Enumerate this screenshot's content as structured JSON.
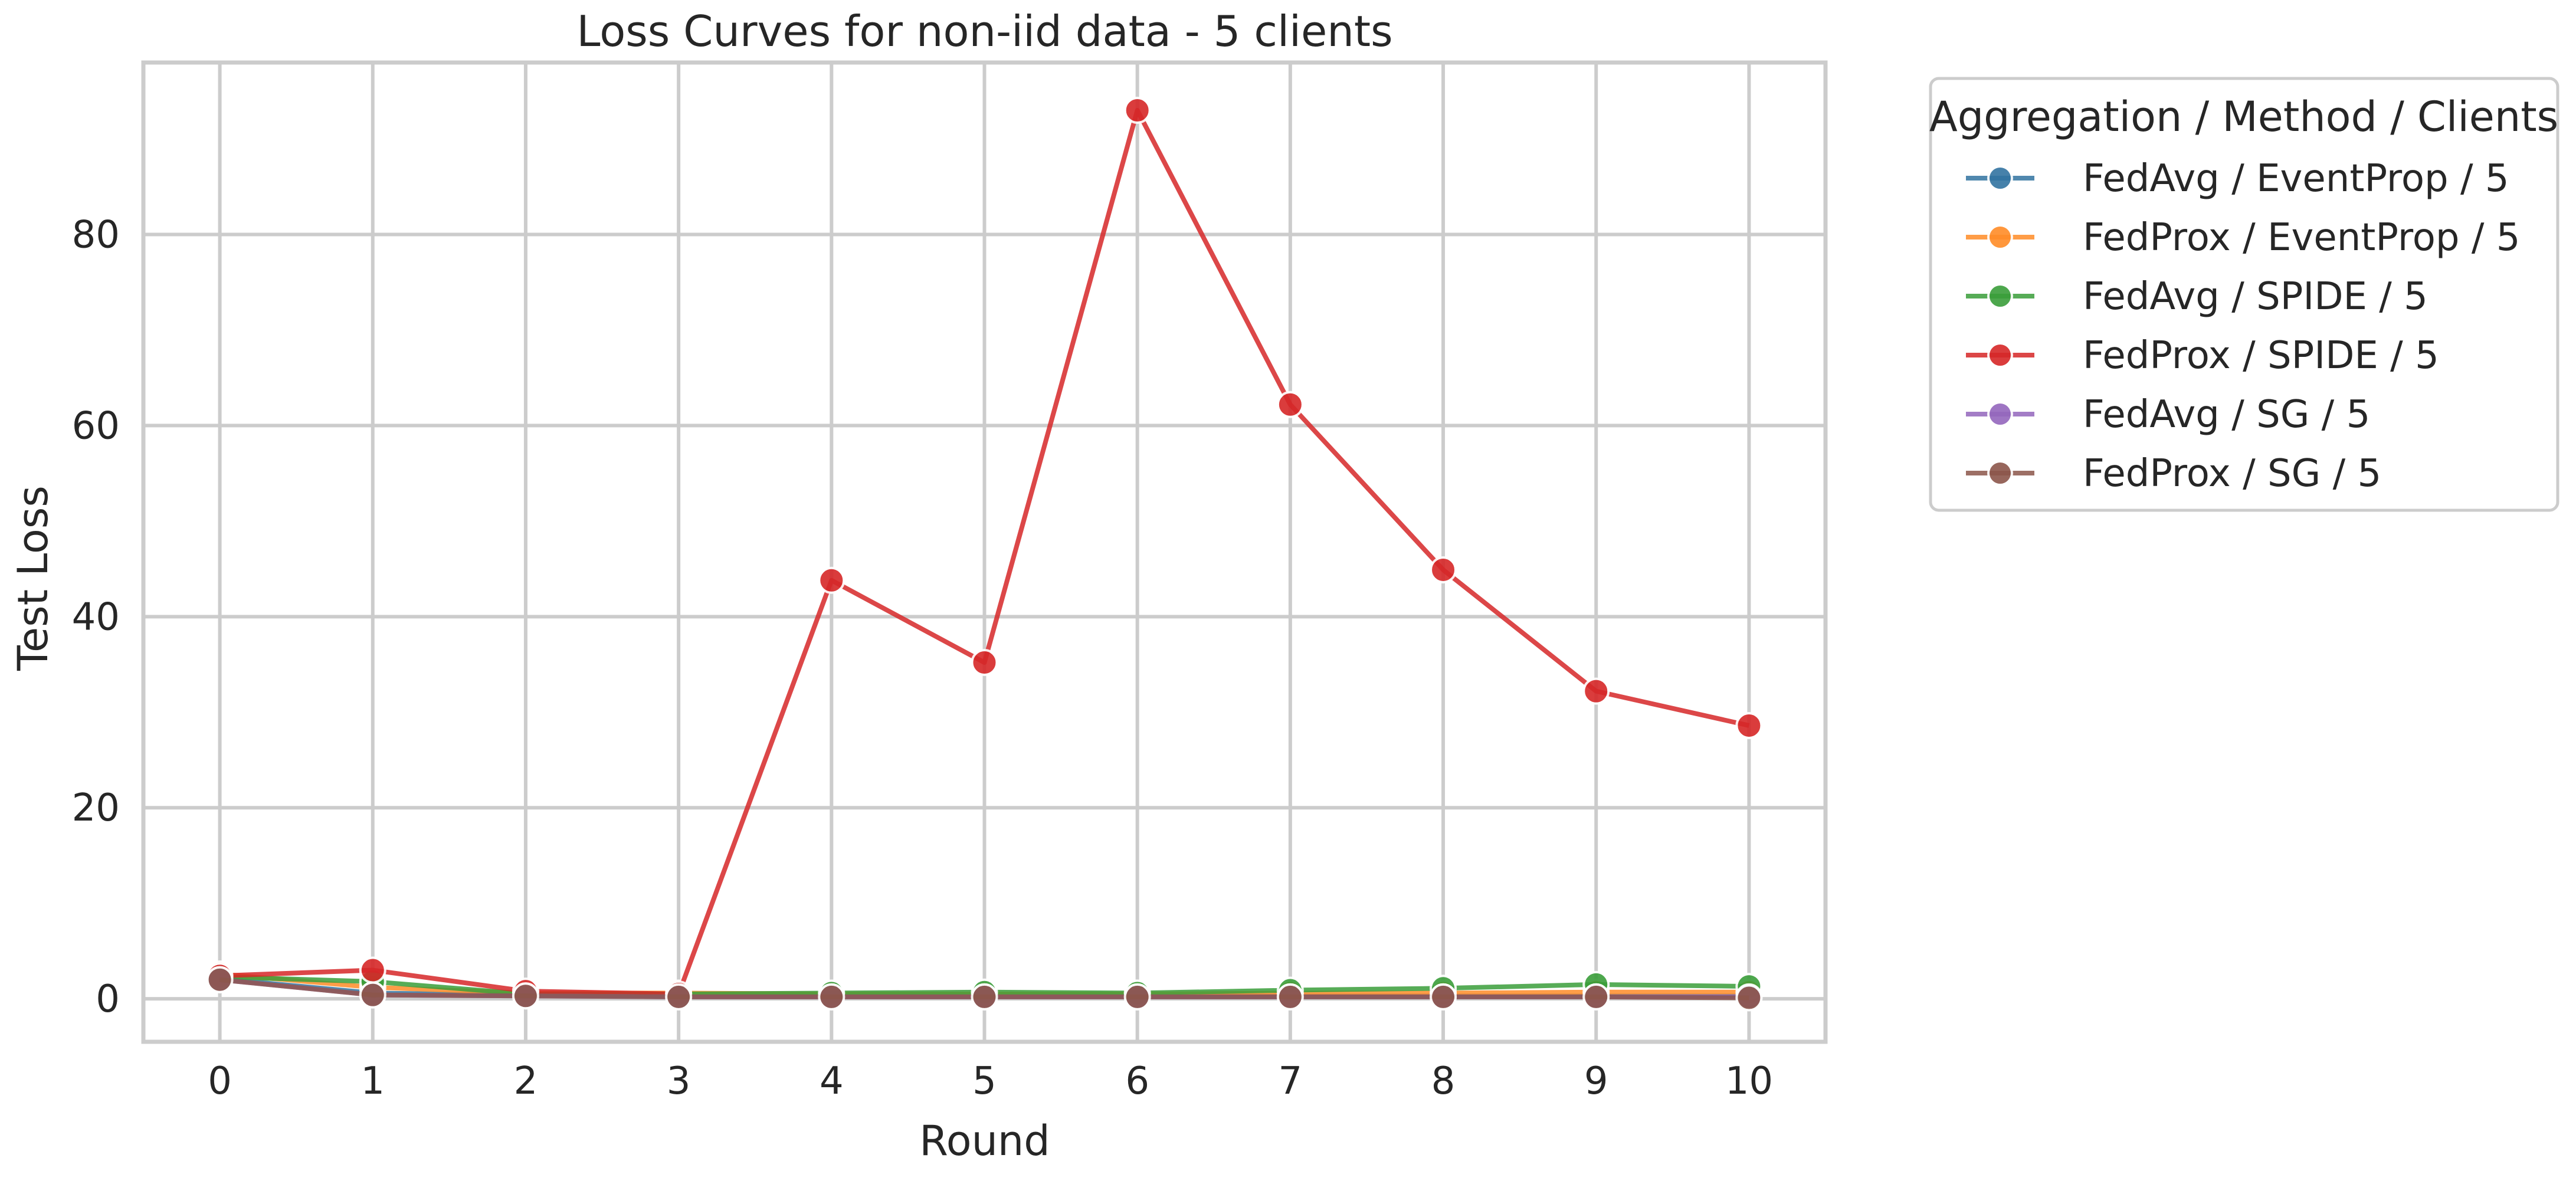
{
  "chart_data": {
    "type": "line",
    "title": "Loss Curves for non-iid data - 5 clients",
    "xlabel": "Round",
    "ylabel": "Test Loss",
    "x": [
      0,
      1,
      2,
      3,
      4,
      5,
      6,
      7,
      8,
      9,
      10
    ],
    "xticks": [
      "0",
      "1",
      "2",
      "3",
      "4",
      "5",
      "6",
      "7",
      "8",
      "9",
      "10"
    ],
    "yticks": [
      0,
      20,
      40,
      60,
      80
    ],
    "xlim": [
      -0.5,
      10.5
    ],
    "ylim": [
      -4.5,
      98
    ],
    "grid": true,
    "legend": {
      "title": "Aggregation / Method / Clients",
      "placement": "outside-top-right"
    },
    "series": [
      {
        "name": "FedAvg / EventProp / 5",
        "color": "#3274a1",
        "values": [
          2.1,
          0.6,
          0.4,
          0.3,
          0.3,
          0.3,
          0.3,
          0.3,
          0.3,
          0.3,
          0.3
        ]
      },
      {
        "name": "FedProx / EventProp / 5",
        "color": "#ff8c28",
        "values": [
          2.6,
          1.2,
          0.6,
          0.6,
          0.5,
          0.5,
          0.5,
          0.6,
          0.6,
          0.7,
          0.7
        ]
      },
      {
        "name": "FedAvg / SPIDE / 5",
        "color": "#3a9e3a",
        "values": [
          2.3,
          1.8,
          0.5,
          0.5,
          0.6,
          0.7,
          0.6,
          0.9,
          1.1,
          1.5,
          1.3
        ]
      },
      {
        "name": "FedProx / SPIDE / 5",
        "color": "#d62728",
        "values": [
          2.4,
          3.0,
          0.8,
          0.5,
          43.8,
          35.2,
          93.0,
          62.2,
          44.9,
          32.2,
          28.6
        ]
      },
      {
        "name": "FedAvg / SG / 5",
        "color": "#9467bd",
        "values": [
          2.0,
          0.4,
          0.3,
          0.2,
          0.2,
          0.2,
          0.2,
          0.2,
          0.2,
          0.2,
          0.2
        ]
      },
      {
        "name": "FedProx / SG / 5",
        "color": "#8c564b",
        "values": [
          2.0,
          0.4,
          0.3,
          0.2,
          0.2,
          0.2,
          0.2,
          0.2,
          0.2,
          0.2,
          0.1
        ]
      }
    ]
  }
}
